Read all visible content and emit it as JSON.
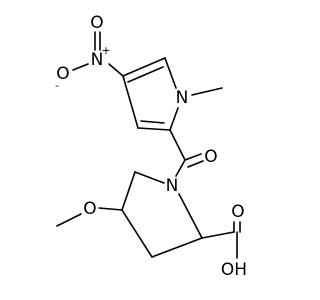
{
  "atoms": [
    {
      "label": "N",
      "charge": "+"
    },
    {
      "label": "O"
    },
    {
      "label": "O",
      "charge": "-"
    },
    {
      "label": "N"
    },
    {
      "label": "O"
    },
    {
      "label": "N"
    },
    {
      "label": "O"
    },
    {
      "label": "O"
    },
    {
      "label": "OH"
    }
  ]
}
